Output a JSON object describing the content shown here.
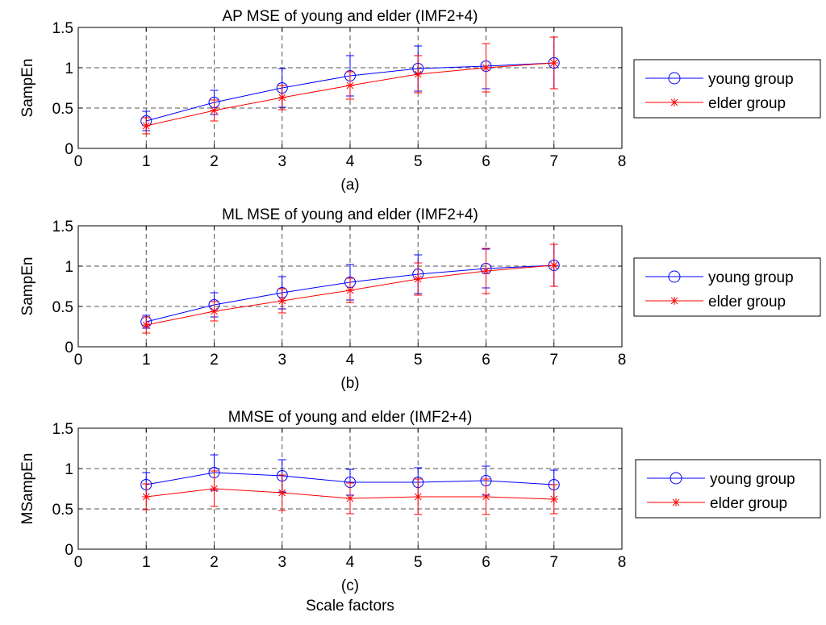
{
  "colors": {
    "young": "#0000ff",
    "elder": "#ff0000",
    "grid": "#555555",
    "axis": "#000000"
  },
  "figure": {
    "xlabel": "Scale factors"
  },
  "chart_data": [
    {
      "type": "line",
      "title": "AP MSE of young and elder (IMF2+4)",
      "caption": "(a)",
      "xlabel": "",
      "ylabel": "SampEn",
      "xlim": [
        0,
        8
      ],
      "ylim": [
        0,
        1.5
      ],
      "xticks": [
        "0",
        "1",
        "2",
        "3",
        "4",
        "5",
        "6",
        "7",
        "8"
      ],
      "yticks": [
        "0",
        "0.5",
        "1",
        "1.5"
      ],
      "grid": true,
      "legend_position": "right",
      "x": [
        1,
        2,
        3,
        4,
        5,
        6,
        7
      ],
      "series": [
        {
          "name": "young group",
          "marker": "circle",
          "values": [
            0.34,
            0.57,
            0.75,
            0.9,
            0.99,
            1.02,
            1.06
          ],
          "err": [
            0.12,
            0.15,
            0.24,
            0.25,
            0.28,
            0.28,
            0.32
          ]
        },
        {
          "name": "elder group",
          "marker": "star",
          "values": [
            0.28,
            0.47,
            0.63,
            0.78,
            0.92,
            1.0,
            1.06
          ],
          "err": [
            0.1,
            0.13,
            0.15,
            0.17,
            0.23,
            0.3,
            0.32
          ]
        }
      ]
    },
    {
      "type": "line",
      "title": "ML MSE of young and elder (IMF2+4)",
      "caption": "(b)",
      "xlabel": "",
      "ylabel": "SampEn",
      "xlim": [
        0,
        8
      ],
      "ylim": [
        0,
        1.5
      ],
      "xticks": [
        "0",
        "1",
        "2",
        "3",
        "4",
        "5",
        "6",
        "7",
        "8"
      ],
      "yticks": [
        "0",
        "0.5",
        "1",
        "1.5"
      ],
      "grid": true,
      "legend_position": "right",
      "x": [
        1,
        2,
        3,
        4,
        5,
        6,
        7
      ],
      "series": [
        {
          "name": "young group",
          "marker": "circle",
          "values": [
            0.31,
            0.52,
            0.67,
            0.8,
            0.9,
            0.97,
            1.01
          ],
          "err": [
            0.08,
            0.15,
            0.2,
            0.22,
            0.24,
            0.24,
            0.26
          ]
        },
        {
          "name": "elder group",
          "marker": "star",
          "values": [
            0.27,
            0.44,
            0.57,
            0.7,
            0.84,
            0.94,
            1.01
          ],
          "err": [
            0.1,
            0.12,
            0.15,
            0.15,
            0.2,
            0.28,
            0.26
          ]
        }
      ]
    },
    {
      "type": "line",
      "title": "MMSE of young and elder (IMF2+4)",
      "caption": "(c)",
      "xlabel": "",
      "ylabel": "MSampEn",
      "xlim": [
        0,
        8
      ],
      "ylim": [
        0,
        1.5
      ],
      "xticks": [
        "0",
        "1",
        "2",
        "3",
        "4",
        "5",
        "6",
        "7",
        "8"
      ],
      "yticks": [
        "0",
        "0.5",
        "1",
        "1.5"
      ],
      "grid": true,
      "legend_position": "right",
      "x": [
        1,
        2,
        3,
        4,
        5,
        6,
        7
      ],
      "series": [
        {
          "name": "young group",
          "marker": "circle",
          "values": [
            0.8,
            0.95,
            0.91,
            0.83,
            0.83,
            0.85,
            0.8
          ],
          "err": [
            0.15,
            0.22,
            0.2,
            0.16,
            0.18,
            0.18,
            0.18
          ]
        },
        {
          "name": "elder group",
          "marker": "star",
          "values": [
            0.65,
            0.75,
            0.7,
            0.63,
            0.65,
            0.65,
            0.62
          ],
          "err": [
            0.16,
            0.22,
            0.22,
            0.19,
            0.22,
            0.22,
            0.18
          ]
        }
      ]
    }
  ]
}
